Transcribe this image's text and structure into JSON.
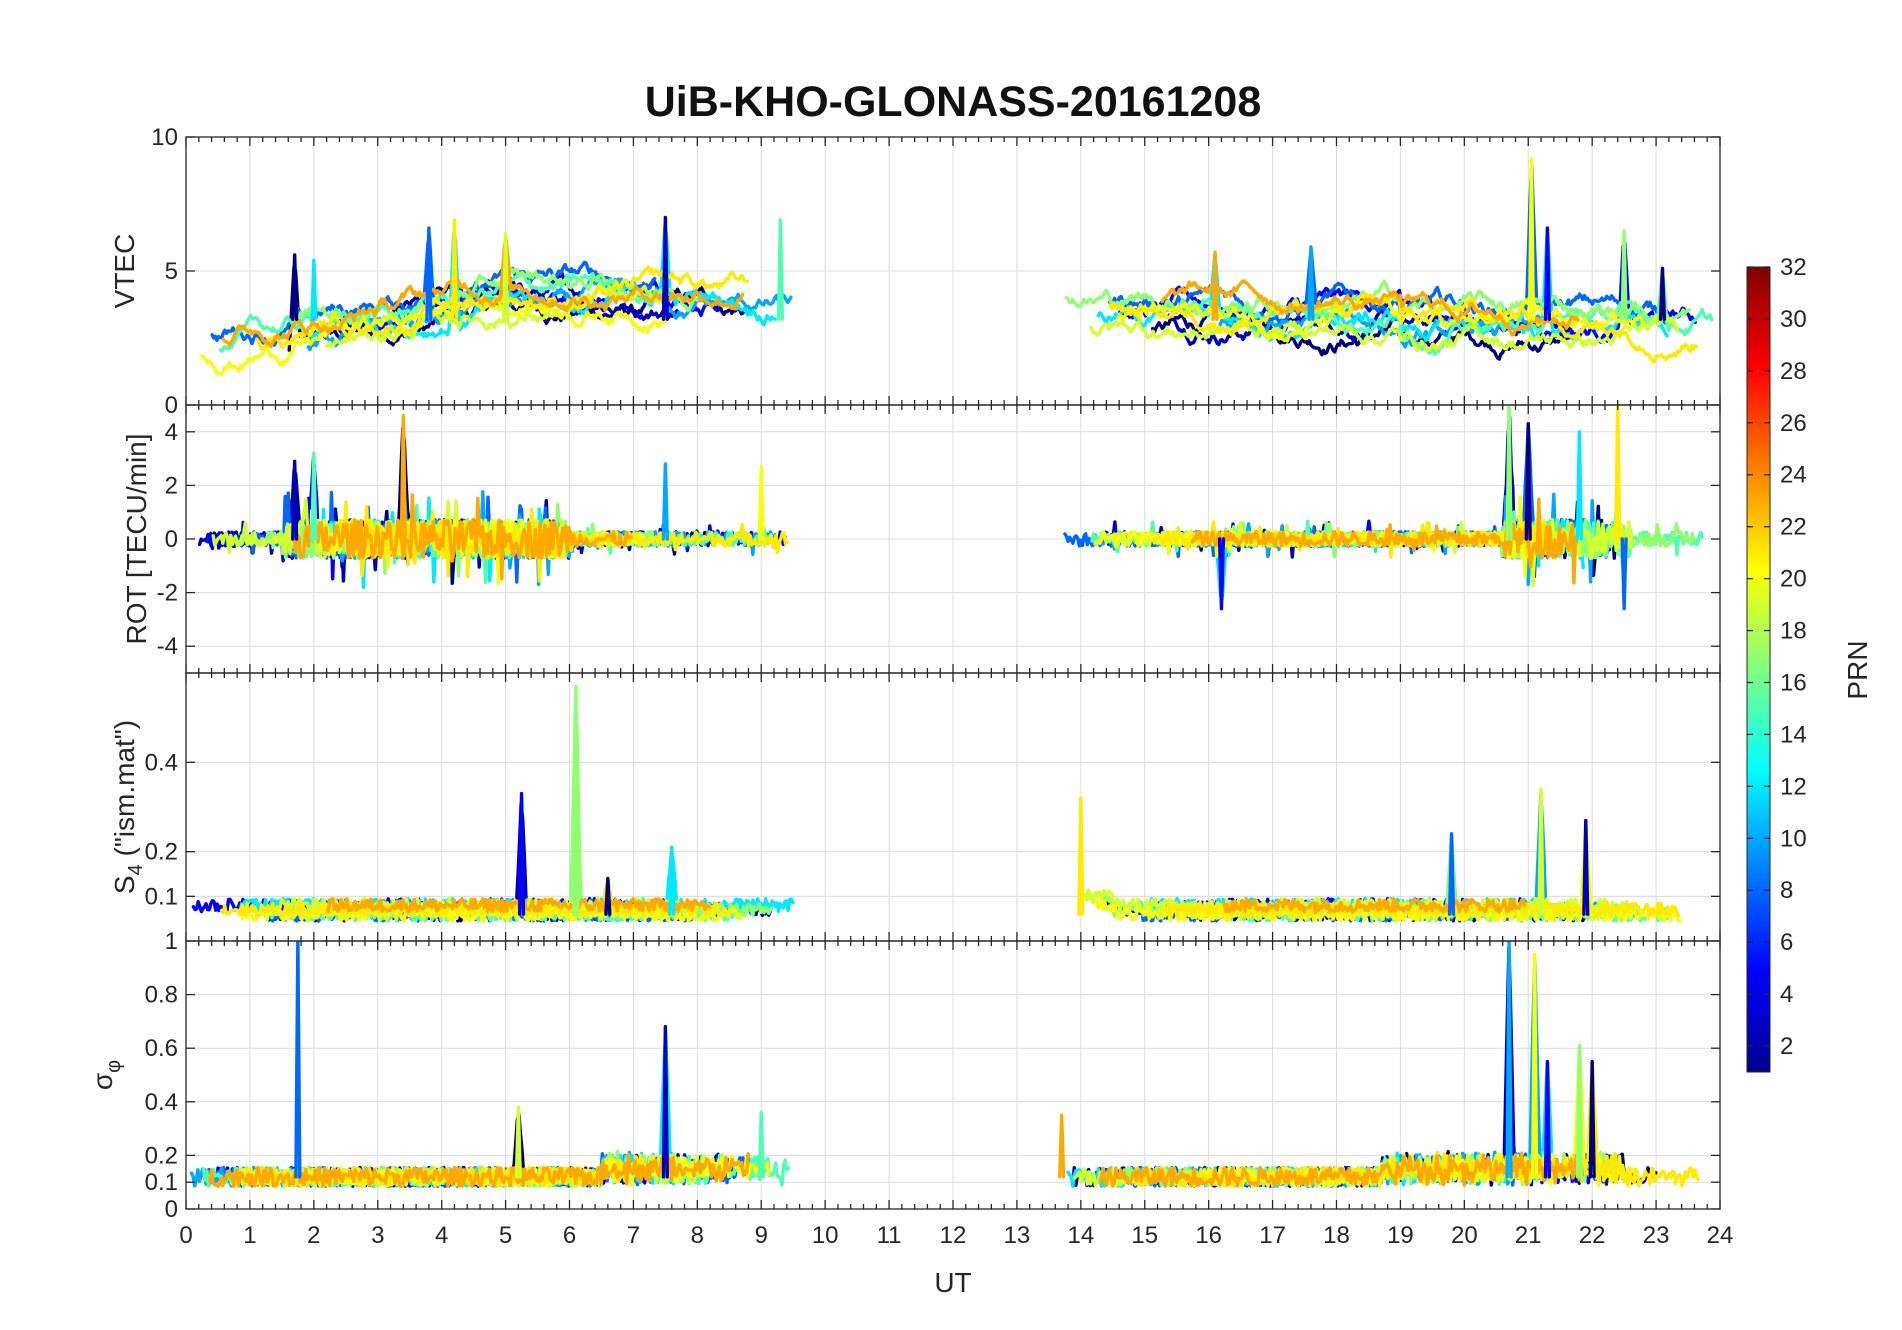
{
  "chart_data": {
    "type": "line",
    "title": "UiB-KHO-GLONASS-20161208",
    "xlabel": "UT",
    "xlim": [
      0,
      24
    ],
    "x_ticks": [
      "0",
      "1",
      "2",
      "3",
      "4",
      "5",
      "6",
      "7",
      "8",
      "9",
      "10",
      "11",
      "12",
      "13",
      "14",
      "15",
      "16",
      "17",
      "18",
      "19",
      "20",
      "21",
      "22",
      "23",
      "24"
    ],
    "grid": true,
    "data_gap_ut": [
      9.6,
      13.7
    ],
    "panels": [
      {
        "key": "vtec",
        "ylabel": "VTEC",
        "ylim": [
          0,
          10
        ],
        "y_ticks": [
          "0",
          "5",
          "10"
        ],
        "baseline": 3.2,
        "spikes": [
          {
            "ut": 1.7,
            "value": 5.6
          },
          {
            "ut": 2.0,
            "value": 5.4
          },
          {
            "ut": 4.2,
            "value": 6.9
          },
          {
            "ut": 3.8,
            "value": 6.6
          },
          {
            "ut": 5.0,
            "value": 6.4
          },
          {
            "ut": 7.5,
            "value": 7.0
          },
          {
            "ut": 9.3,
            "value": 6.9
          },
          {
            "ut": 16.1,
            "value": 5.7
          },
          {
            "ut": 17.6,
            "value": 5.9
          },
          {
            "ut": 21.05,
            "value": 9.2
          },
          {
            "ut": 21.3,
            "value": 6.6
          },
          {
            "ut": 22.5,
            "value": 6.5
          },
          {
            "ut": 23.1,
            "value": 5.1
          }
        ]
      },
      {
        "key": "rot",
        "ylabel": "ROT [TECU/min]",
        "ylim": [
          -5,
          5
        ],
        "y_ticks": [
          "-4",
          "-2",
          "0",
          "2",
          "4"
        ],
        "baseline": 0,
        "spikes": [
          {
            "ut": 1.7,
            "value": 2.9
          },
          {
            "ut": 2.0,
            "value": 3.2
          },
          {
            "ut": 3.4,
            "value": 4.6
          },
          {
            "ut": 7.5,
            "value": 2.8
          },
          {
            "ut": 9.0,
            "value": 2.7
          },
          {
            "ut": 16.2,
            "value": -2.6
          },
          {
            "ut": 20.7,
            "value": 5.0
          },
          {
            "ut": 21.0,
            "value": 4.3
          },
          {
            "ut": 21.8,
            "value": 4.0
          },
          {
            "ut": 22.4,
            "value": 5.0
          },
          {
            "ut": 22.5,
            "value": -2.6
          }
        ]
      },
      {
        "key": "s4",
        "ylabel": "S4 (\"ism.mat\")",
        "ylabel_main": "S",
        "ylabel_sub": "4",
        "ylabel_rest": " (\"ism.mat\")",
        "ylim": [
          0,
          0.6
        ],
        "y_ticks": [
          "0.1",
          "0.2",
          "0.4"
        ],
        "baseline": 0.06,
        "spikes": [
          {
            "ut": 5.25,
            "value": 0.33
          },
          {
            "ut": 6.1,
            "value": 0.57
          },
          {
            "ut": 6.6,
            "value": 0.14
          },
          {
            "ut": 7.6,
            "value": 0.21
          },
          {
            "ut": 14.0,
            "value": 0.32
          },
          {
            "ut": 19.8,
            "value": 0.24
          },
          {
            "ut": 21.2,
            "value": 0.34
          },
          {
            "ut": 21.9,
            "value": 0.27
          }
        ]
      },
      {
        "key": "sigma",
        "ylabel": "σφ",
        "ylabel_main": "σ",
        "ylabel_sub": "φ",
        "ylim": [
          0,
          1
        ],
        "y_ticks": [
          "0",
          "0.1",
          "0.2",
          "0.4",
          "0.6",
          "0.8",
          "1"
        ],
        "baseline": 0.12,
        "spikes": [
          {
            "ut": 1.75,
            "value": 1.0
          },
          {
            "ut": 5.2,
            "value": 0.38
          },
          {
            "ut": 7.5,
            "value": 0.68
          },
          {
            "ut": 9.0,
            "value": 0.36
          },
          {
            "ut": 13.7,
            "value": 0.35
          },
          {
            "ut": 20.7,
            "value": 1.0
          },
          {
            "ut": 21.1,
            "value": 0.95
          },
          {
            "ut": 21.3,
            "value": 0.55
          },
          {
            "ut": 21.8,
            "value": 0.61
          },
          {
            "ut": 22.0,
            "value": 0.55
          }
        ]
      }
    ],
    "colorbar": {
      "label": "PRN",
      "range": [
        1,
        32
      ],
      "ticks": [
        "2",
        "4",
        "6",
        "8",
        "10",
        "12",
        "14",
        "16",
        "18",
        "20",
        "22",
        "24",
        "26",
        "28",
        "30",
        "32"
      ],
      "colormap": "jet"
    },
    "series_prn": [
      1,
      3,
      5,
      8,
      10,
      12,
      15,
      17,
      19,
      20,
      21,
      23
    ]
  }
}
